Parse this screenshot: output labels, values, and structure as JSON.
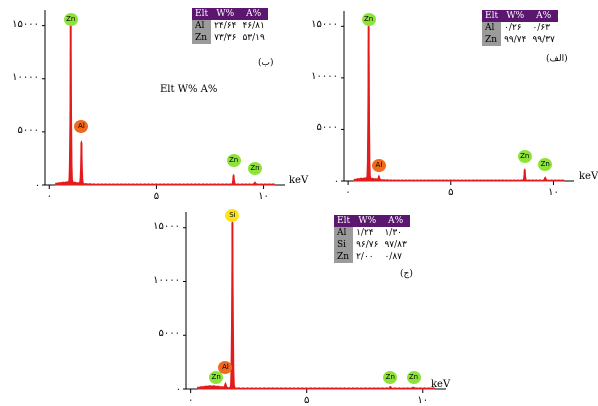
{
  "colors": {
    "spectrum": "#e41a1c",
    "table_header": "#5b1670",
    "table_label": "#9b9b9b",
    "zn_marker": "#8ee33a",
    "al_marker": "#ef6a1c",
    "si_marker": "#ffe21a"
  },
  "chart_data": [
    {
      "type": "line",
      "panel": "(ب)",
      "xlabel": "keV",
      "xlim": [
        -0.2,
        11
      ],
      "ylim": [
        0,
        16000
      ],
      "x_ticks": [
        0,
        5,
        10
      ],
      "x_tick_labels": [
        "۰",
        "۵",
        "۱۰"
      ],
      "y_ticks": [
        0,
        5000,
        10000,
        15000
      ],
      "y_tick_labels": [
        ".",
        "۵۰۰۰",
        "۱۰۰۰۰",
        "۱۵۰۰۰"
      ],
      "series": [
        {
          "peaks": [
            [
              1.0,
              15000
            ],
            [
              1.5,
              4000
            ],
            [
              8.6,
              900
            ],
            [
              9.6,
              200
            ]
          ]
        }
      ],
      "peak_labels": [
        {
          "text": "Zn",
          "x": 1.0,
          "y": 15000,
          "kind": "zn"
        },
        {
          "text": "Al",
          "x": 1.5,
          "y": 4900,
          "kind": "al"
        },
        {
          "text": "Zn",
          "x": 8.6,
          "y": 1700,
          "kind": "zn"
        },
        {
          "text": "Zn",
          "x": 9.6,
          "y": 900,
          "kind": "zn"
        }
      ],
      "annotation": "Elt W% A%",
      "table": {
        "headers": [
          "Elt",
          "W%",
          "A%"
        ],
        "rows": [
          [
            "Al",
            "۲۴/۶۴",
            "۴۶/۸۱"
          ],
          [
            "Zn",
            "۷۳/۳۶",
            "۵۳/۱۹"
          ]
        ]
      }
    },
    {
      "type": "line",
      "panel": "(الف)",
      "xlabel": "keV",
      "xlim": [
        -0.2,
        11
      ],
      "ylim": [
        0,
        16000
      ],
      "x_ticks": [
        0,
        5,
        10
      ],
      "x_tick_labels": [
        "۰",
        "۵",
        "۱۰"
      ],
      "y_ticks": [
        0,
        5000,
        10000,
        15000
      ],
      "y_tick_labels": [
        ".",
        "۵۰۰۰",
        "۱۰۰۰۰",
        "۱۵۰۰۰"
      ],
      "series": [
        {
          "peaks": [
            [
              1.0,
              15000
            ],
            [
              1.5,
              350
            ],
            [
              8.6,
              1100
            ],
            [
              9.6,
              300
            ]
          ]
        }
      ],
      "peak_labels": [
        {
          "text": "Zn",
          "x": 1.0,
          "y": 15000,
          "kind": "zn"
        },
        {
          "text": "Al",
          "x": 1.5,
          "y": 900,
          "kind": "al"
        },
        {
          "text": "Zn",
          "x": 8.6,
          "y": 1700,
          "kind": "zn"
        },
        {
          "text": "Zn",
          "x": 9.6,
          "y": 1000,
          "kind": "zn"
        }
      ],
      "table": {
        "headers": [
          "Elt",
          "W%",
          "A%"
        ],
        "rows": [
          [
            "Al",
            "۰/۲۶",
            "۰/۶۳"
          ],
          [
            "Zn",
            "۹۹/۷۴",
            "۹۹/۳۷"
          ]
        ]
      }
    },
    {
      "type": "line",
      "panel": "(ج)",
      "xlabel": "keV",
      "xlim": [
        -0.2,
        11
      ],
      "ylim": [
        0,
        16000
      ],
      "x_ticks": [
        0,
        5,
        10
      ],
      "x_tick_labels": [
        "۰",
        "۵",
        "۱۰"
      ],
      "y_ticks": [
        0,
        5000,
        10000,
        15000
      ],
      "y_tick_labels": [
        ".",
        "۵۰۰۰",
        "۱۰۰۰۰",
        "۱۵۰۰۰"
      ],
      "series": [
        {
          "peaks": [
            [
              1.5,
              400
            ],
            [
              1.8,
              15500
            ],
            [
              8.6,
              150
            ],
            [
              9.6,
              100
            ]
          ]
        }
      ],
      "peak_labels": [
        {
          "text": "Si",
          "x": 1.8,
          "y": 15500,
          "kind": "si"
        },
        {
          "text": "Al",
          "x": 1.5,
          "y": 1400,
          "kind": "al"
        },
        {
          "text": "Zn",
          "x": 1.1,
          "y": 500,
          "kind": "zn"
        },
        {
          "text": "Zn",
          "x": 8.6,
          "y": 500,
          "kind": "zn"
        },
        {
          "text": "Zn",
          "x": 9.6,
          "y": 500,
          "kind": "zn"
        }
      ],
      "table": {
        "headers": [
          "Elt",
          "W%",
          "A%"
        ],
        "rows": [
          [
            "Al",
            "۱/۲۴",
            "۱/۳۰"
          ],
          [
            "Si",
            "۹۶/۷۶",
            "۹۷/۸۳"
          ],
          [
            "Zn",
            "۲/۰۰",
            "۰/۸۷"
          ]
        ]
      }
    }
  ]
}
